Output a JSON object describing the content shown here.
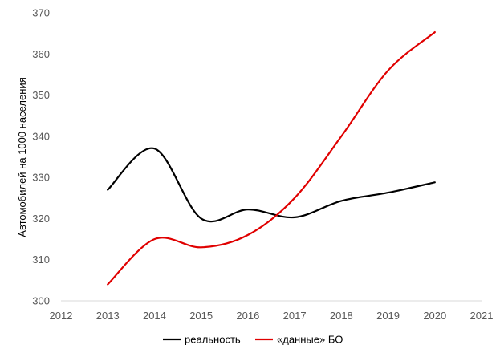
{
  "chart_data": {
    "type": "line",
    "title": "",
    "xlabel": "",
    "ylabel": "Автомобилей на 1000 населения",
    "xlim": [
      2012,
      2021
    ],
    "ylim": [
      300,
      370
    ],
    "x_ticks": [
      2012,
      2013,
      2014,
      2015,
      2016,
      2017,
      2018,
      2019,
      2020,
      2021
    ],
    "y_ticks": [
      300,
      310,
      320,
      330,
      340,
      350,
      360,
      370
    ],
    "grid": false,
    "smooth": true,
    "legend_position": "bottom",
    "series": [
      {
        "name": "реальность",
        "color": "#000000",
        "x": [
          2013,
          2014,
          2015,
          2016,
          2017,
          2018,
          2019,
          2020
        ],
        "y": [
          327,
          337,
          320,
          322.2,
          320.3,
          324.3,
          326.3,
          328.8
        ]
      },
      {
        "name": "«данные» БО",
        "color": "#e00000",
        "x": [
          2013,
          2014,
          2015,
          2016,
          2017,
          2018,
          2019,
          2020
        ],
        "y": [
          304,
          315,
          313,
          316,
          325,
          340,
          356,
          365.3
        ]
      }
    ]
  }
}
